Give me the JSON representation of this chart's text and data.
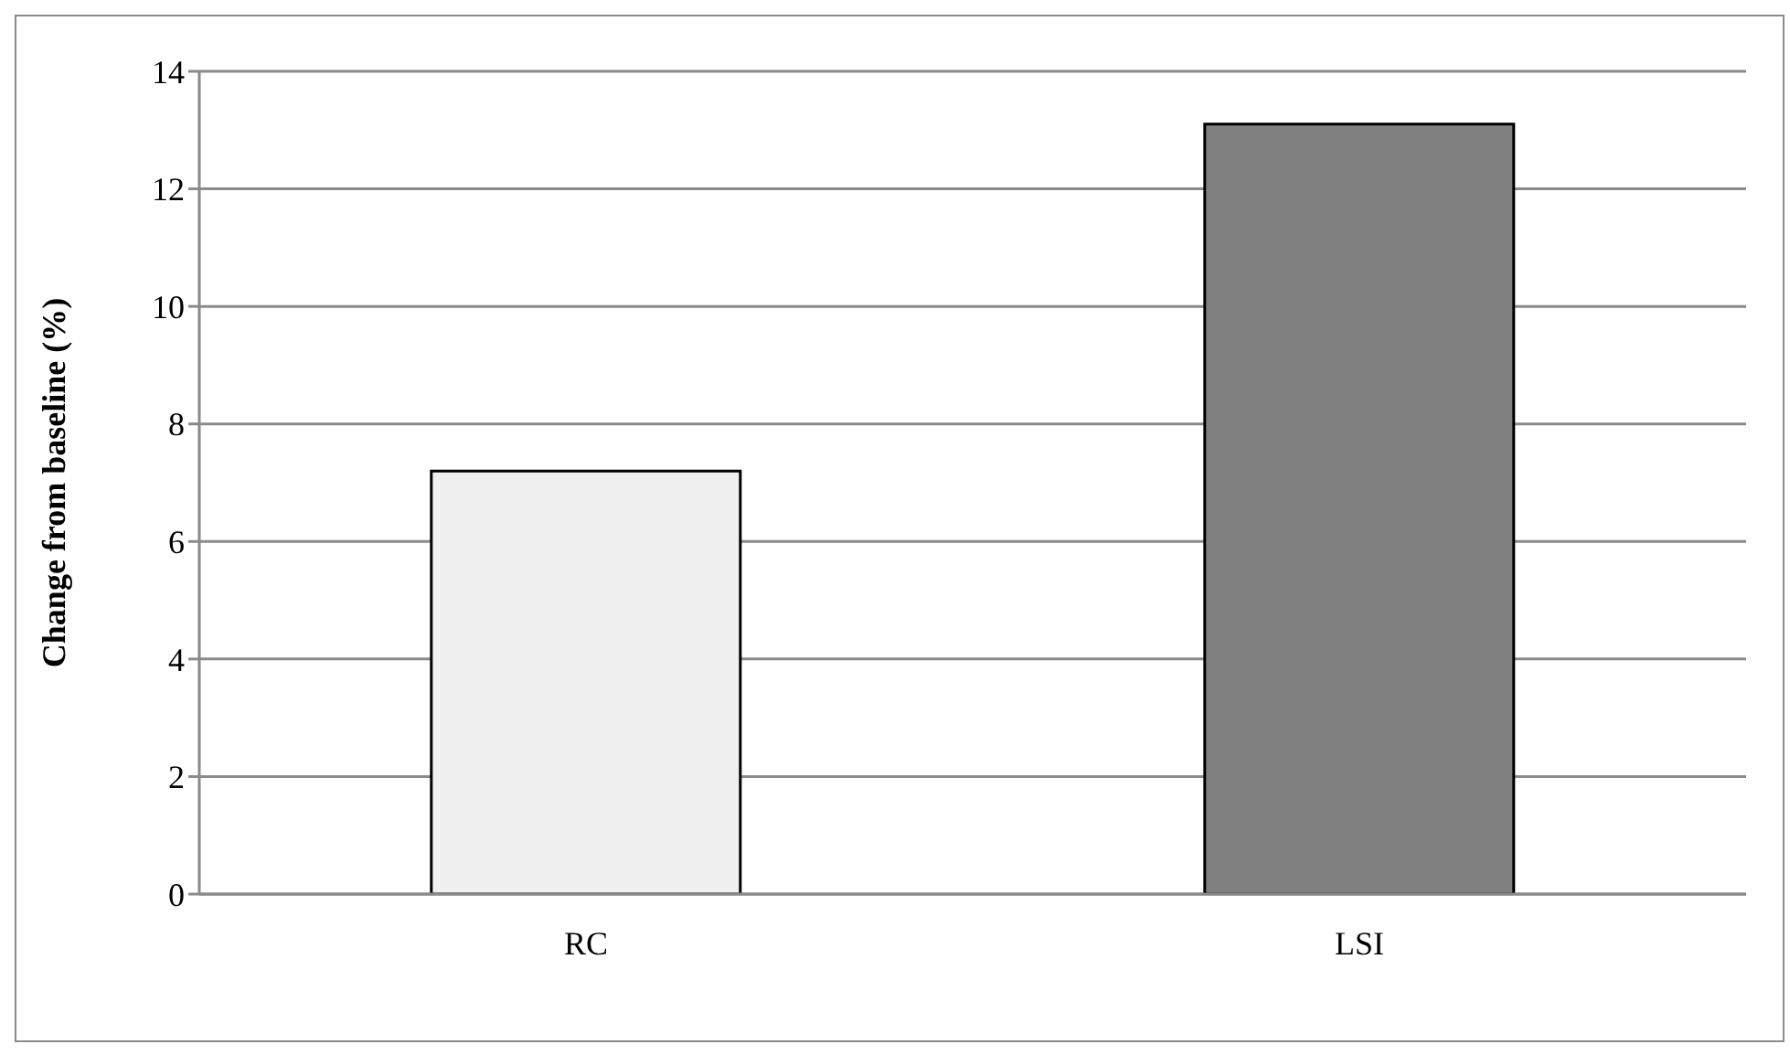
{
  "chart_data": {
    "type": "bar",
    "ylabel": "Change from baseline (%)",
    "categories": [
      "RC",
      "LSI"
    ],
    "values": [
      7.2,
      13.1
    ],
    "colors": [
      "#f0f0f0",
      "#808080"
    ],
    "ylim": [
      0,
      14
    ],
    "yticks": [
      0,
      2,
      4,
      6,
      8,
      10,
      12,
      14
    ],
    "grid": "y"
  }
}
